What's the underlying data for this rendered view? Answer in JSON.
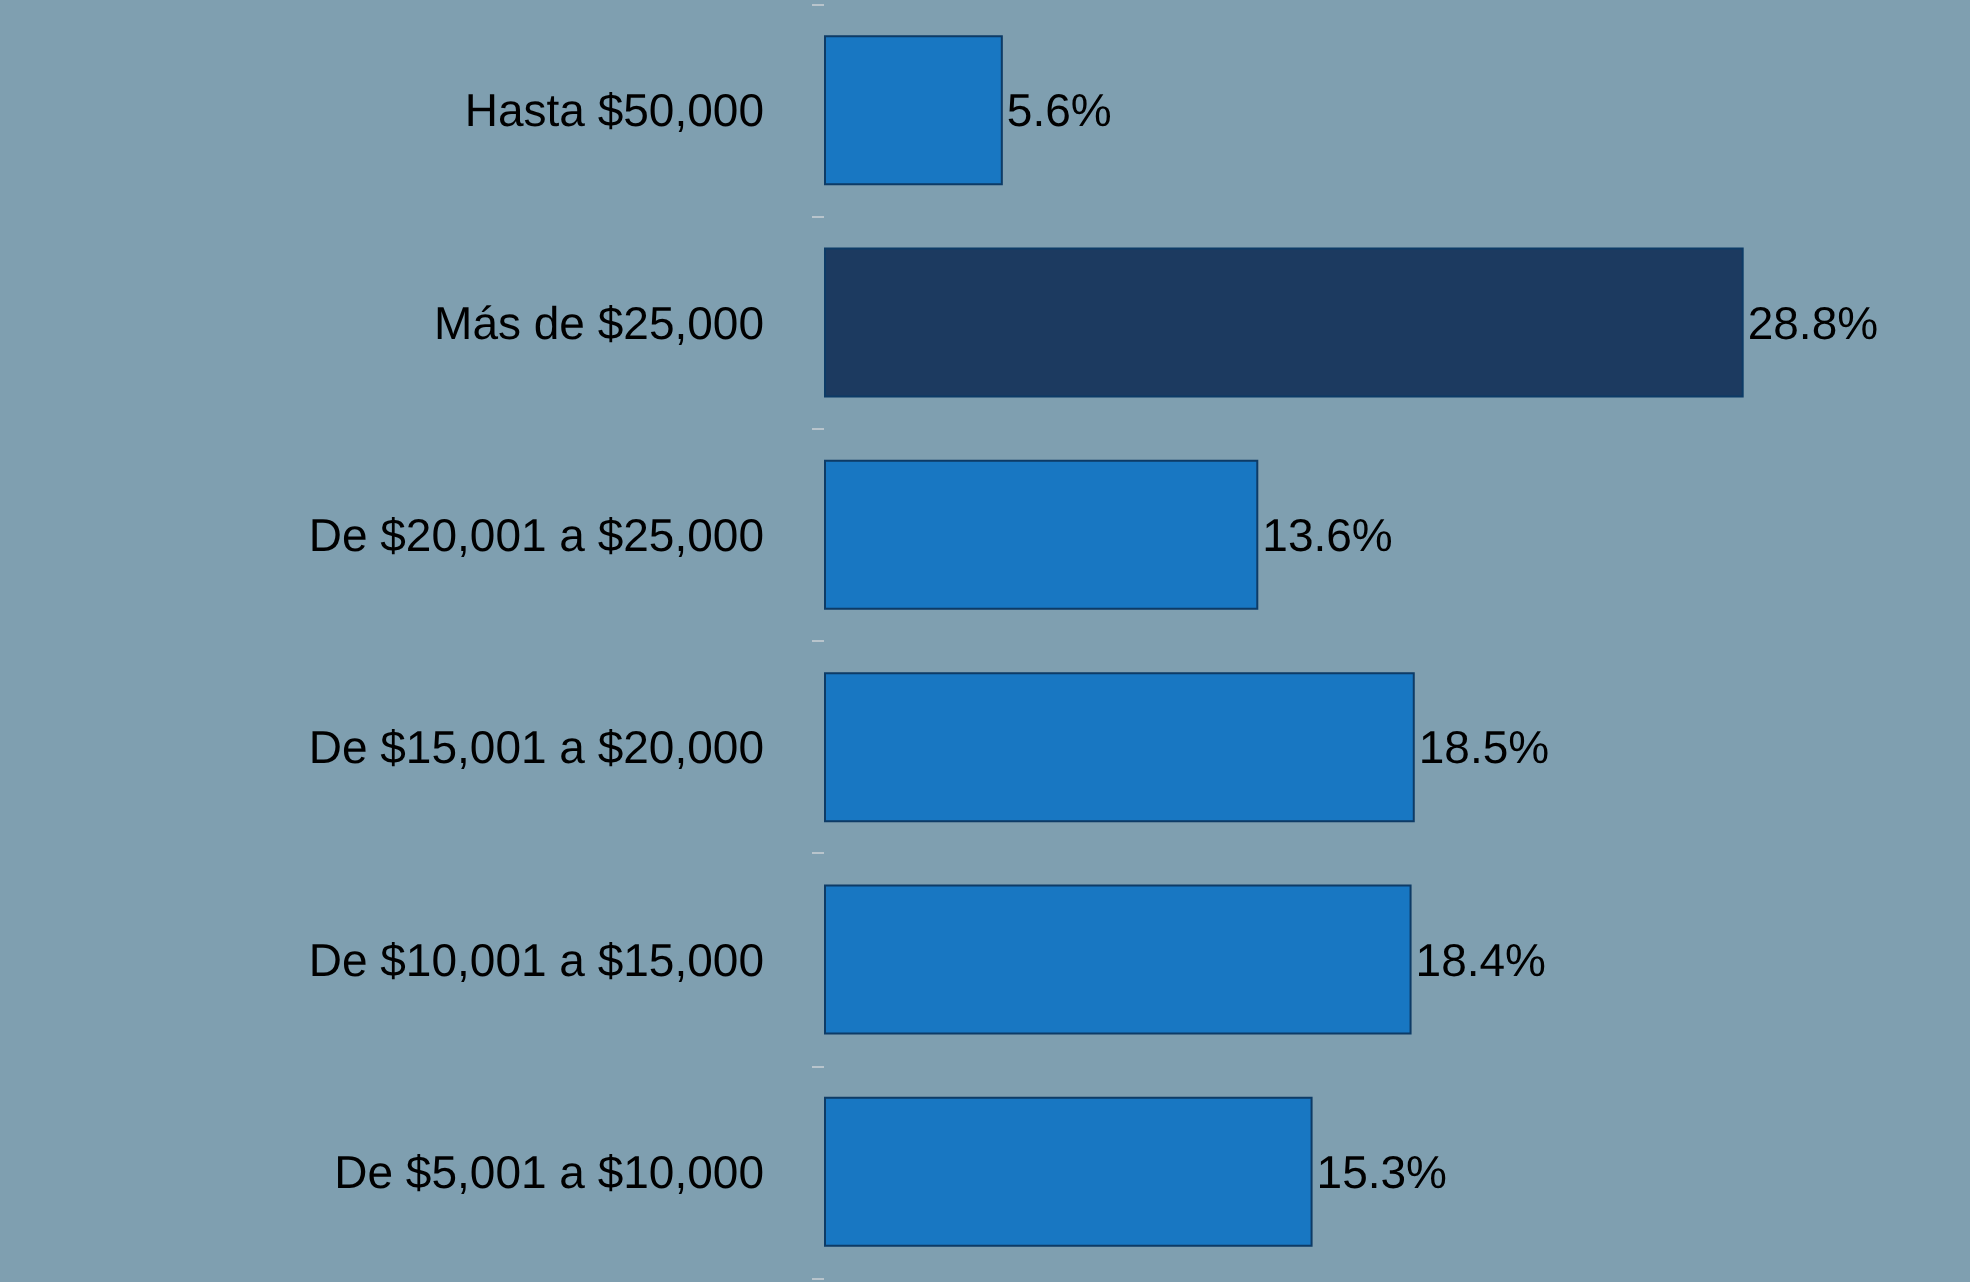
{
  "chart_data": {
    "type": "bar",
    "orientation": "horizontal",
    "value_labels": [
      "5.6%",
      "28.8%",
      "13.6%",
      "18.5%",
      "18.4%",
      "15.3%"
    ],
    "categories": [
      "Hasta $50,000",
      "Más de $25,000",
      "De $20,001 a $25,000",
      "De $15,001 a $20,000",
      "De $10,001 a $15,000",
      "De $5,001 a $10,000"
    ],
    "values": [
      5.6,
      28.8,
      13.6,
      18.5,
      18.4,
      15.3
    ],
    "colors": [
      "#1877c2",
      "#1c3a60",
      "#1877c2",
      "#1877c2",
      "#1877c2",
      "#1877c2"
    ]
  }
}
